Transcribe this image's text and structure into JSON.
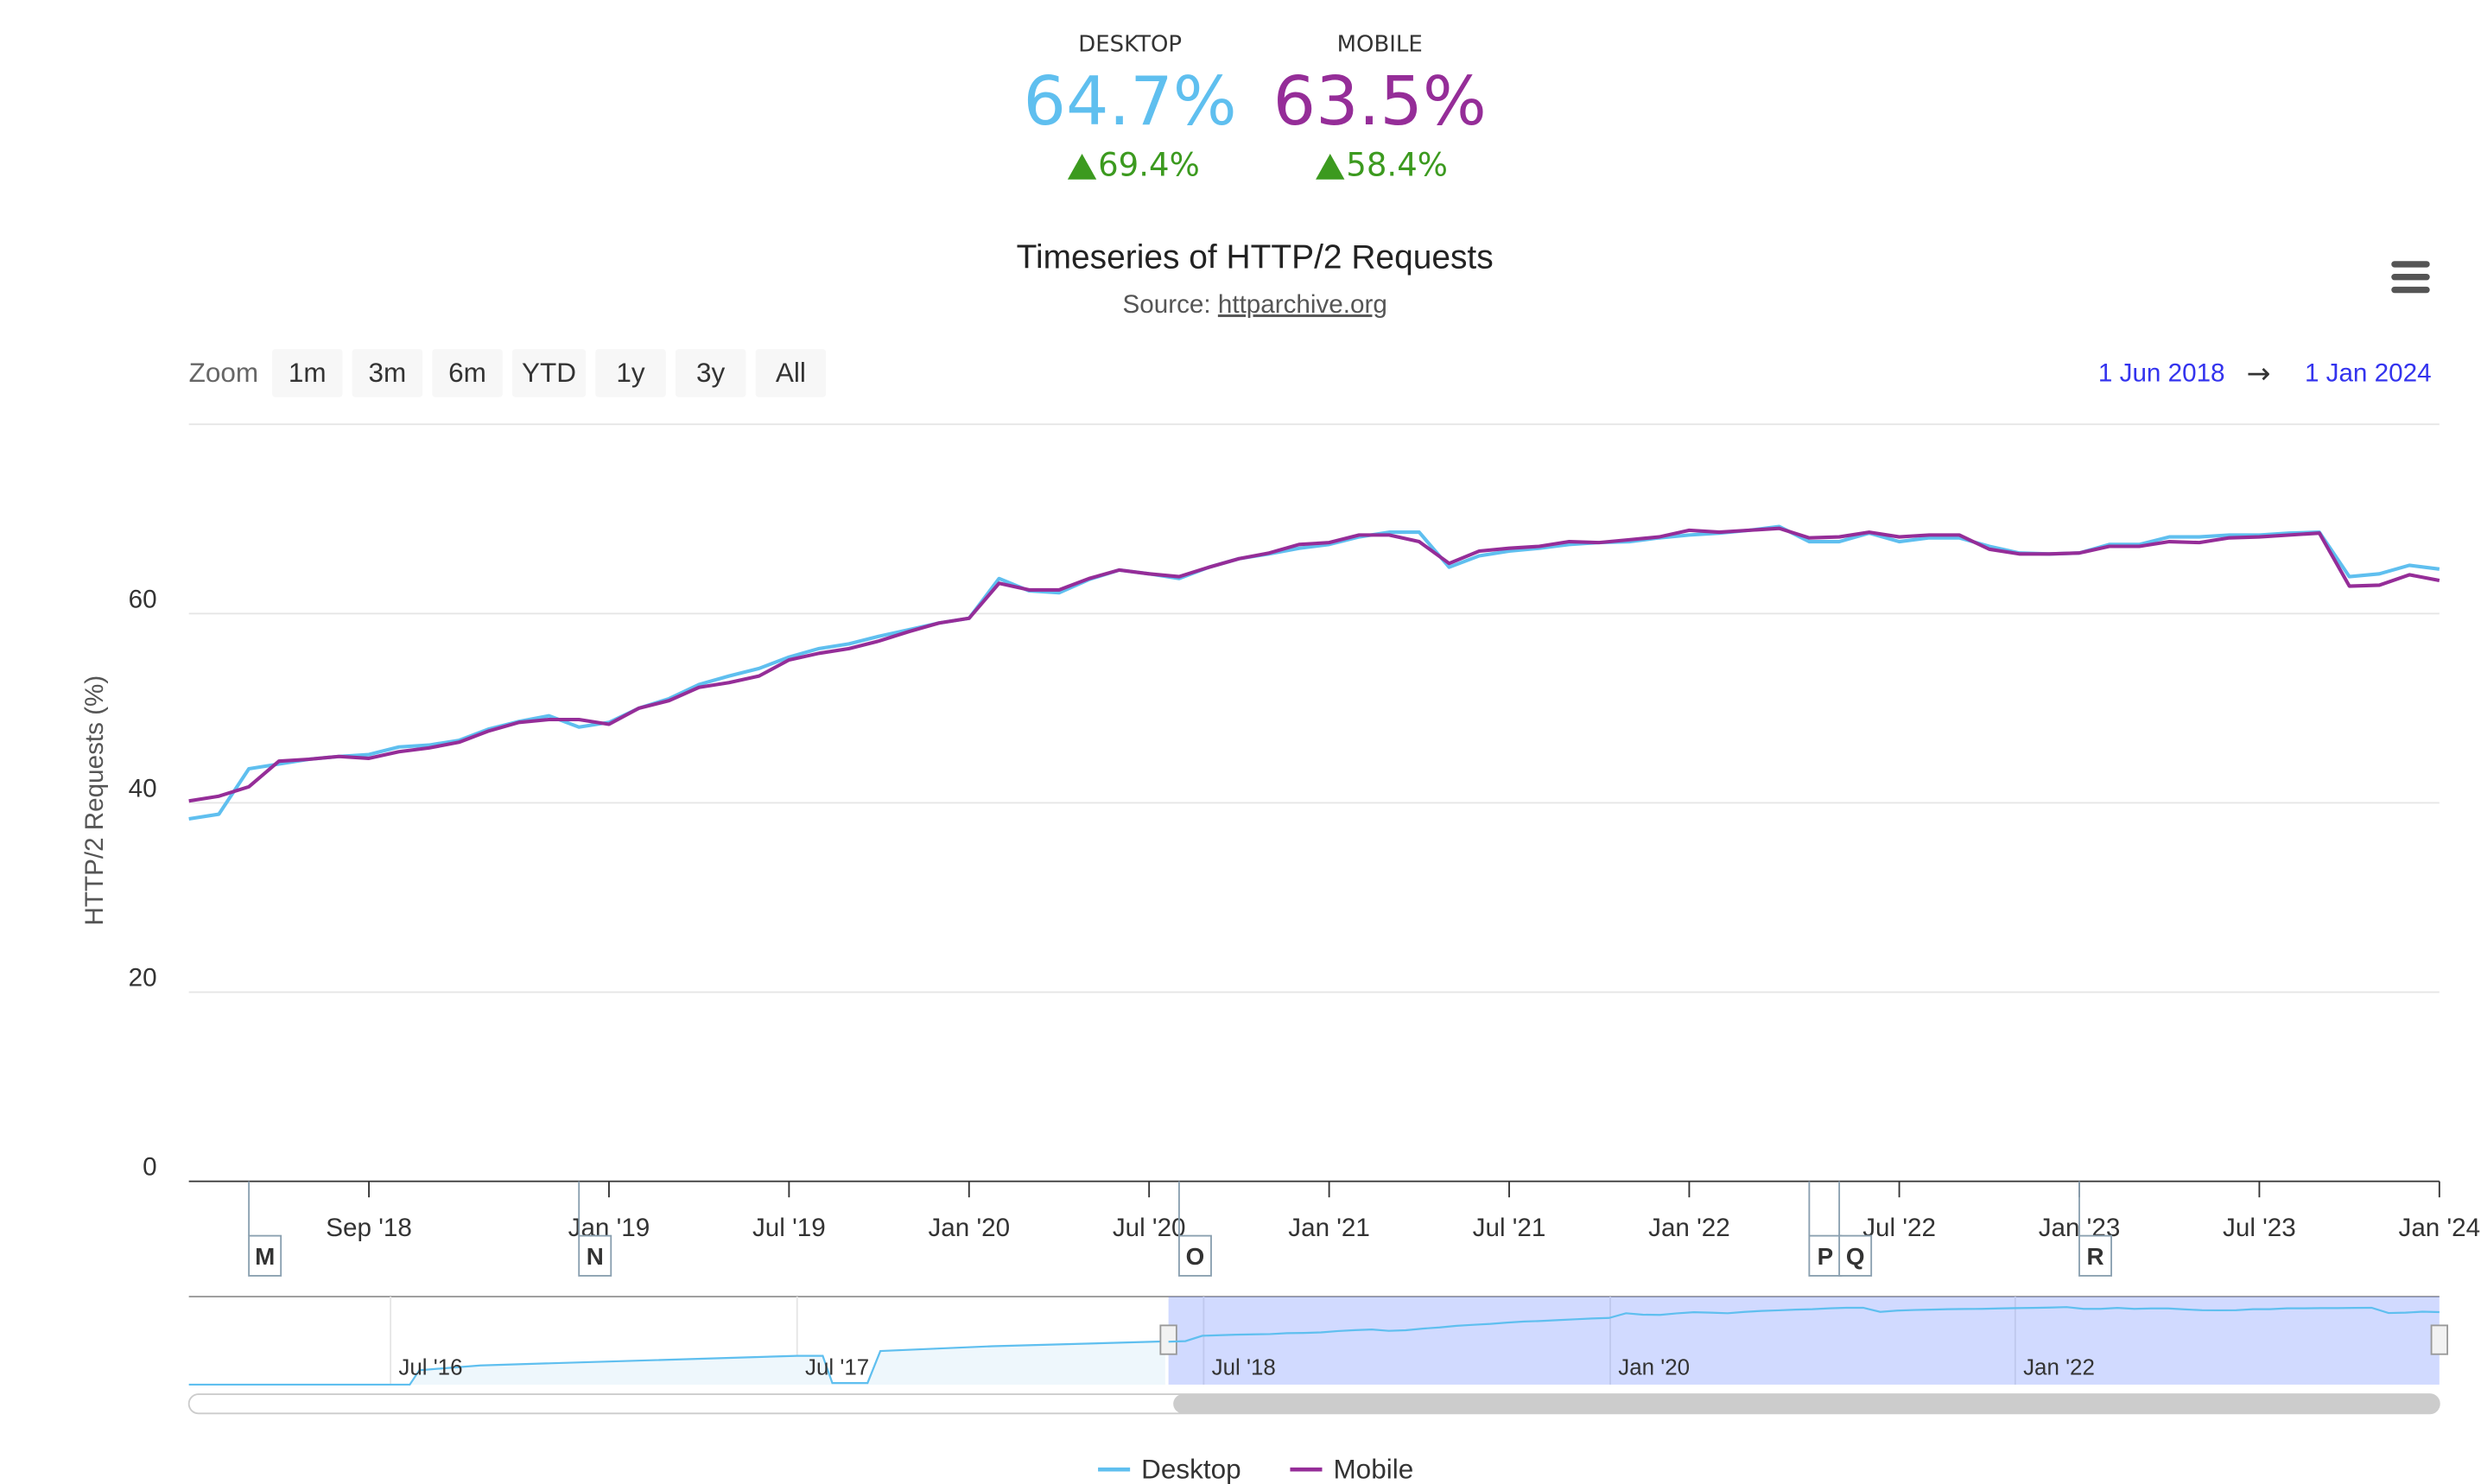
{
  "header": {
    "desktop": {
      "label": "DESKTOP",
      "value": "64.7%",
      "change": "69.4%"
    },
    "mobile": {
      "label": "MOBILE",
      "value": "63.5%",
      "change": "58.4%"
    }
  },
  "zoom": {
    "label": "Zoom",
    "buttons": [
      "1m",
      "3m",
      "6m",
      "YTD",
      "1y",
      "3y",
      "All"
    ]
  },
  "range": {
    "from": "1 Jun 2018",
    "arrow": "→",
    "to": "1 Jan 2024"
  },
  "navigator": {
    "labels": [
      "Jul '16",
      "Jul '17",
      "Jul '18",
      "Jan '20",
      "Jan '22"
    ]
  },
  "chart_data": {
    "type": "line",
    "title": "Timeseries of HTTP/2 Requests",
    "subtitle_prefix": "Source:",
    "subtitle_link": "httparchive.org",
    "y_label": "HTTP/2 Requests (%)",
    "categories": [
      null,
      null,
      null,
      null,
      null,
      null,
      "Sep '18",
      null,
      null,
      null,
      null,
      null,
      null,
      null,
      "Jan '19",
      null,
      null,
      null,
      null,
      null,
      "Jul '19",
      null,
      null,
      null,
      null,
      null,
      "Jan '20",
      null,
      null,
      null,
      null,
      null,
      "Jul '20",
      null,
      null,
      null,
      null,
      null,
      "Jan '21",
      null,
      null,
      null,
      null,
      null,
      "Jul '21",
      null,
      null,
      null,
      null,
      null,
      "Jan '22",
      null,
      null,
      null,
      null,
      null,
      null,
      "Jul '22",
      null,
      null,
      null,
      null,
      null,
      "Jan '23",
      null,
      null,
      null,
      null,
      null,
      "Jul '23",
      null,
      null,
      null,
      null,
      null,
      "Jan '24"
    ],
    "series": [
      {
        "name": "Desktop",
        "color": "#5fbfef",
        "values": [
          38.3,
          38.8,
          43.6,
          44.1,
          44.6,
          44.9,
          45.1,
          45.9,
          46.1,
          46.6,
          47.8,
          48.6,
          49.2,
          48.0,
          48.5,
          50.0,
          51.0,
          52.5,
          53.4,
          54.2,
          55.4,
          56.3,
          56.8,
          57.6,
          58.3,
          59.0,
          59.5,
          63.7,
          62.4,
          62.2,
          63.6,
          64.6,
          64.2,
          63.7,
          64.9,
          65.8,
          66.3,
          66.9,
          67.3,
          68.1,
          68.6,
          68.6,
          64.9,
          66.1,
          66.6,
          66.9,
          67.3,
          67.5,
          67.6,
          68.0,
          68.3,
          68.5,
          68.8,
          69.2,
          67.6,
          67.6,
          68.5,
          67.6,
          68.0,
          68.0,
          67.1,
          66.4,
          66.3,
          66.4,
          67.3,
          67.3,
          68.1,
          68.1,
          68.3,
          68.3,
          68.5,
          68.6,
          63.9,
          64.2,
          65.1,
          64.7
        ]
      },
      {
        "name": "Mobile",
        "color": "#952d98",
        "values": [
          40.2,
          40.7,
          41.7,
          44.4,
          44.6,
          44.9,
          44.7,
          45.4,
          45.8,
          46.4,
          47.6,
          48.5,
          48.8,
          48.8,
          48.3,
          50.0,
          50.8,
          52.2,
          52.7,
          53.4,
          55.1,
          55.8,
          56.3,
          57.1,
          58.1,
          59.0,
          59.5,
          63.2,
          62.5,
          62.5,
          63.7,
          64.6,
          64.2,
          63.9,
          64.9,
          65.8,
          66.4,
          67.3,
          67.5,
          68.3,
          68.3,
          67.6,
          65.3,
          66.6,
          66.9,
          67.1,
          67.6,
          67.5,
          67.8,
          68.1,
          68.8,
          68.6,
          68.8,
          69.0,
          68.0,
          68.1,
          68.6,
          68.1,
          68.3,
          68.3,
          66.8,
          66.3,
          66.3,
          66.4,
          67.1,
          67.1,
          67.6,
          67.5,
          68.0,
          68.1,
          68.3,
          68.5,
          62.9,
          63.0,
          64.1,
          63.5
        ]
      }
    ],
    "flags": [
      {
        "label": "M",
        "at": 2
      },
      {
        "label": "N",
        "at": 13
      },
      {
        "label": "O",
        "at": 33
      },
      {
        "label": "P",
        "at": 54
      },
      {
        "label": "Q",
        "at": 55
      },
      {
        "label": "R",
        "at": 63
      }
    ],
    "ylim": [
      0,
      80
    ],
    "yticks": [
      0,
      20,
      40,
      60
    ],
    "grid": true
  }
}
